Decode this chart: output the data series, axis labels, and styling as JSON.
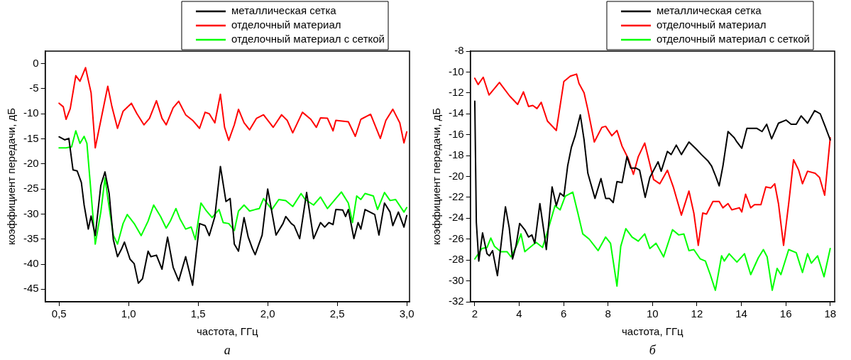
{
  "chart_data": [
    {
      "type": "line",
      "xlabel": "частота, ГГц",
      "ylabel": "коэффициент передачи, дБ",
      "annotations": [
        "а"
      ],
      "xlim": [
        0.4,
        3.02
      ],
      "ylim": [
        -47.5,
        2.5
      ],
      "xticks": [
        {
          "value": 0.5,
          "label": "0,5"
        },
        {
          "value": 1,
          "label": "1,0"
        },
        {
          "value": 1.5,
          "label": "1,5"
        },
        {
          "value": 2,
          "label": "2,0"
        },
        {
          "value": 2.5,
          "label": "2,5"
        },
        {
          "value": 3,
          "label": "3,0"
        }
      ],
      "yticks": [
        0,
        -5,
        -10,
        -15,
        -20,
        -25,
        -30,
        -35,
        -40,
        -45
      ],
      "grid": false,
      "legend": "top right",
      "marker": "none",
      "line_style": "solid",
      "series": [
        {
          "name": "металлическая сетка",
          "color": "#000000",
          "x": [
            0.5,
            0.54,
            0.57,
            0.6,
            0.63,
            0.66,
            0.68,
            0.71,
            0.73,
            0.76,
            0.8,
            0.83,
            0.86,
            0.89,
            0.92,
            0.95,
            0.97,
            1.01,
            1.04,
            1.07,
            1.1,
            1.14,
            1.16,
            1.2,
            1.24,
            1.28,
            1.32,
            1.36,
            1.41,
            1.46,
            1.51,
            1.55,
            1.58,
            1.62,
            1.66,
            1.7,
            1.73,
            1.76,
            1.79,
            1.83,
            1.86,
            1.89,
            1.91,
            1.96,
            2.0,
            2.03,
            2.06,
            2.11,
            2.13,
            2.17,
            2.19,
            2.23,
            2.28,
            2.33,
            2.38,
            2.41,
            2.44,
            2.47,
            2.49,
            2.54,
            2.56,
            2.58,
            2.62,
            2.65,
            2.67,
            2.7,
            2.77,
            2.8,
            2.84,
            2.88,
            2.9,
            2.94,
            2.98,
            3.0
          ],
          "values": [
            -14.6,
            -15.2,
            -14.9,
            -21.2,
            -21.4,
            -23.7,
            -28.2,
            -33.0,
            -30.4,
            -34.3,
            -24.3,
            -21.6,
            -25.9,
            -35.1,
            -38.5,
            -36.9,
            -35.6,
            -39.0,
            -39.9,
            -43.8,
            -42.9,
            -37.4,
            -38.5,
            -38.2,
            -41.0,
            -34.6,
            -40.6,
            -43.3,
            -38.5,
            -44.2,
            -31.9,
            -32.3,
            -34.3,
            -30.5,
            -20.5,
            -27.5,
            -26.9,
            -36.0,
            -37.4,
            -30.7,
            -34.6,
            -36.9,
            -38.1,
            -34.2,
            -25.0,
            -29.6,
            -34.2,
            -31.9,
            -30.5,
            -31.9,
            -32.3,
            -34.9,
            -25.7,
            -34.9,
            -31.7,
            -32.6,
            -31.7,
            -32.1,
            -29.1,
            -29.2,
            -30.5,
            -29.1,
            -34.9,
            -31.7,
            -33.0,
            -29.1,
            -30.1,
            -34.2,
            -27.8,
            -29.6,
            -32.3,
            -29.6,
            -32.6,
            -30.3
          ]
        },
        {
          "name": "отделочный материал",
          "color": "#ff0000",
          "x": [
            0.5,
            0.53,
            0.55,
            0.58,
            0.62,
            0.65,
            0.69,
            0.73,
            0.76,
            0.8,
            0.85,
            0.88,
            0.92,
            0.96,
            1.02,
            1.06,
            1.11,
            1.15,
            1.2,
            1.24,
            1.27,
            1.32,
            1.36,
            1.41,
            1.46,
            1.51,
            1.55,
            1.58,
            1.62,
            1.66,
            1.69,
            1.72,
            1.76,
            1.79,
            1.83,
            1.87,
            1.92,
            1.97,
            2.04,
            2.1,
            2.14,
            2.18,
            2.25,
            2.31,
            2.35,
            2.38,
            2.43,
            2.47,
            2.49,
            2.58,
            2.63,
            2.67,
            2.74,
            2.81,
            2.85,
            2.9,
            2.95,
            2.98,
            3.0
          ],
          "values": [
            -7.9,
            -8.6,
            -11.1,
            -9.0,
            -2.4,
            -3.5,
            -0.8,
            -5.8,
            -16.8,
            -11.3,
            -4.5,
            -8.6,
            -12.9,
            -9.5,
            -7.9,
            -10.0,
            -12.2,
            -10.9,
            -7.4,
            -10.9,
            -12.2,
            -8.8,
            -7.5,
            -10.2,
            -11.3,
            -12.9,
            -9.7,
            -10.0,
            -11.8,
            -6.1,
            -12.7,
            -15.3,
            -12.2,
            -9.1,
            -11.8,
            -13.2,
            -10.9,
            -10.2,
            -12.7,
            -10.2,
            -11.3,
            -13.8,
            -9.7,
            -11.1,
            -12.7,
            -10.8,
            -10.9,
            -13.4,
            -11.3,
            -11.6,
            -14.5,
            -11.1,
            -10.1,
            -14.9,
            -11.3,
            -9.1,
            -11.8,
            -15.8,
            -13.6
          ]
        },
        {
          "name": "отделочный материал с сеткой",
          "color": "#00ff00",
          "x": [
            0.5,
            0.55,
            0.59,
            0.62,
            0.65,
            0.68,
            0.7,
            0.73,
            0.76,
            0.8,
            0.83,
            0.86,
            0.89,
            0.92,
            0.96,
            0.99,
            1.04,
            1.09,
            1.14,
            1.18,
            1.23,
            1.27,
            1.3,
            1.34,
            1.37,
            1.41,
            1.45,
            1.48,
            1.52,
            1.56,
            1.6,
            1.65,
            1.68,
            1.72,
            1.76,
            1.79,
            1.83,
            1.87,
            1.91,
            1.94,
            1.97,
            2.03,
            2.08,
            2.13,
            2.18,
            2.24,
            2.27,
            2.33,
            2.38,
            2.43,
            2.49,
            2.53,
            2.58,
            2.61,
            2.64,
            2.67,
            2.7,
            2.76,
            2.79,
            2.84,
            2.88,
            2.92,
            2.98,
            3.0
          ],
          "values": [
            -16.8,
            -16.8,
            -16.6,
            -13.4,
            -15.9,
            -14.5,
            -15.9,
            -25.9,
            -36.0,
            -29.6,
            -22.8,
            -28.7,
            -34.2,
            -36.0,
            -31.9,
            -30.1,
            -31.9,
            -34.3,
            -31.4,
            -28.2,
            -30.5,
            -32.8,
            -31.4,
            -28.9,
            -31.0,
            -33.0,
            -32.6,
            -35.1,
            -27.8,
            -29.4,
            -30.7,
            -29.1,
            -31.7,
            -31.9,
            -33.3,
            -29.4,
            -28.2,
            -29.4,
            -29.1,
            -28.9,
            -26.9,
            -29.1,
            -27.1,
            -27.3,
            -28.5,
            -25.9,
            -27.1,
            -28.2,
            -26.6,
            -28.9,
            -26.9,
            -25.6,
            -27.8,
            -31.7,
            -26.4,
            -27.1,
            -25.9,
            -26.4,
            -29.1,
            -25.7,
            -27.3,
            -27.1,
            -29.6,
            -28.7
          ]
        }
      ]
    },
    {
      "type": "line",
      "xlabel": "частота, ГГц",
      "ylabel": "коэффициент передачи, дБ",
      "annotations": [
        "б"
      ],
      "xlim": [
        1.8,
        18.2
      ],
      "ylim": [
        -32,
        -8
      ],
      "xticks": [
        2,
        4,
        6,
        8,
        10,
        12,
        14,
        16,
        18
      ],
      "yticks": [
        -8,
        -10,
        -12,
        -14,
        -16,
        -18,
        -20,
        -22,
        -24,
        -26,
        -28,
        -30,
        -32
      ],
      "grid": false,
      "legend": "top right",
      "marker": "none",
      "line_style": "solid",
      "series": [
        {
          "name": "металлическая сетка",
          "color": "#000000",
          "x": [
            2.0,
            2.07,
            2.18,
            2.35,
            2.55,
            2.66,
            2.8,
            3.02,
            3.2,
            3.38,
            3.55,
            3.7,
            3.85,
            4.02,
            4.25,
            4.42,
            4.57,
            4.7,
            4.93,
            5.1,
            5.22,
            5.48,
            5.67,
            5.84,
            6.01,
            6.18,
            6.35,
            6.52,
            6.75,
            6.92,
            7.09,
            7.41,
            7.68,
            7.89,
            8.06,
            8.23,
            8.4,
            8.63,
            8.85,
            9.02,
            9.25,
            9.42,
            9.67,
            9.88,
            10.25,
            10.39,
            10.67,
            10.84,
            11.07,
            11.3,
            11.64,
            11.98,
            12.2,
            12.49,
            12.66,
            12.83,
            13.0,
            13.17,
            13.4,
            13.68,
            13.8,
            14.02,
            14.25,
            14.48,
            14.7,
            14.93,
            15.14,
            15.36,
            15.67,
            16.01,
            16.24,
            16.47,
            16.69,
            16.98,
            17.3,
            17.55,
            17.77,
            18.0
          ],
          "values": [
            -12.8,
            -24.4,
            -28.1,
            -25.4,
            -27.4,
            -27.6,
            -27.1,
            -29.5,
            -26.2,
            -22.9,
            -24.9,
            -27.9,
            -26.7,
            -24.5,
            -25.1,
            -25.8,
            -25.6,
            -26.4,
            -22.6,
            -25.1,
            -27.0,
            -21.0,
            -22.8,
            -21.6,
            -21.9,
            -19.0,
            -17.2,
            -16.1,
            -14.1,
            -16.5,
            -19.7,
            -22.1,
            -20.2,
            -22.1,
            -22.1,
            -22.5,
            -20.5,
            -20.6,
            -18.1,
            -19.2,
            -19.2,
            -19.4,
            -22.0,
            -20.1,
            -18.6,
            -19.5,
            -17.6,
            -17.9,
            -17.0,
            -17.9,
            -16.7,
            -17.4,
            -17.9,
            -18.5,
            -19.0,
            -19.9,
            -20.9,
            -19.0,
            -15.7,
            -16.3,
            -16.7,
            -17.3,
            -15.4,
            -15.4,
            -15.4,
            -15.7,
            -15.0,
            -16.4,
            -14.9,
            -14.6,
            -15.0,
            -15.0,
            -14.2,
            -14.9,
            -13.7,
            -14.0,
            -15.2,
            -16.5
          ]
        },
        {
          "name": "отделочный материал",
          "color": "#ff0000",
          "x": [
            2.0,
            2.15,
            2.38,
            2.64,
            3.11,
            3.57,
            3.93,
            4.19,
            4.42,
            4.61,
            4.8,
            4.99,
            5.27,
            5.67,
            6.01,
            6.3,
            6.58,
            6.69,
            6.92,
            7.09,
            7.38,
            7.72,
            7.89,
            8.17,
            8.4,
            8.63,
            8.91,
            9.14,
            9.36,
            9.65,
            10.05,
            10.33,
            10.67,
            10.95,
            11.3,
            11.64,
            11.86,
            12.06,
            12.26,
            12.43,
            12.72,
            13.0,
            13.17,
            13.4,
            13.57,
            13.91,
            14.02,
            14.19,
            14.42,
            14.59,
            14.88,
            15.1,
            15.33,
            15.5,
            15.67,
            15.9,
            16.13,
            16.35,
            16.58,
            16.75,
            16.98,
            17.32,
            17.52,
            17.75,
            18.0
          ],
          "values": [
            -10.6,
            -11.2,
            -10.5,
            -12.2,
            -11.0,
            -12.3,
            -13.1,
            -11.9,
            -13.3,
            -13.2,
            -13.5,
            -12.9,
            -14.7,
            -15.6,
            -10.9,
            -10.4,
            -10.2,
            -11.1,
            -12.0,
            -13.6,
            -16.7,
            -15.3,
            -15.2,
            -16.1,
            -15.6,
            -17.1,
            -18.3,
            -19.8,
            -18.1,
            -16.8,
            -20.3,
            -20.7,
            -19.4,
            -21.1,
            -23.7,
            -21.4,
            -23.5,
            -26.6,
            -23.5,
            -23.6,
            -22.4,
            -22.4,
            -23.0,
            -22.6,
            -23.2,
            -23.0,
            -23.4,
            -21.7,
            -23.0,
            -22.7,
            -22.7,
            -21.0,
            -21.1,
            -20.7,
            -22.6,
            -26.6,
            -22.6,
            -18.4,
            -19.4,
            -20.7,
            -19.5,
            -19.7,
            -20.1,
            -21.8,
            -16.3
          ]
        },
        {
          "name": "отделочный материал с сеткой",
          "color": "#00ff00",
          "x": [
            2.0,
            2.32,
            2.55,
            2.72,
            2.89,
            3.17,
            3.45,
            3.63,
            3.91,
            4.08,
            4.25,
            4.48,
            4.76,
            5.05,
            5.27,
            5.61,
            5.84,
            6.07,
            6.41,
            6.64,
            6.86,
            7.15,
            7.55,
            7.89,
            8.11,
            8.4,
            8.57,
            8.8,
            9.08,
            9.36,
            9.65,
            9.88,
            10.16,
            10.5,
            10.9,
            11.18,
            11.41,
            11.64,
            11.86,
            12.15,
            12.38,
            12.6,
            12.83,
            13.11,
            13.23,
            13.45,
            13.8,
            14.14,
            14.42,
            14.76,
            14.99,
            15.16,
            15.39,
            15.61,
            15.78,
            16.13,
            16.47,
            16.75,
            16.98,
            17.15,
            17.43,
            17.72,
            18.0
          ],
          "values": [
            -27.9,
            -26.9,
            -26.8,
            -25.9,
            -26.7,
            -27.2,
            -27.2,
            -27.7,
            -26.5,
            -25.5,
            -27.2,
            -26.8,
            -26.3,
            -26.8,
            -25.3,
            -22.8,
            -23.2,
            -21.9,
            -21.5,
            -23.5,
            -25.5,
            -26.0,
            -27.1,
            -25.8,
            -26.4,
            -30.5,
            -26.7,
            -25.0,
            -25.8,
            -26.2,
            -25.5,
            -26.9,
            -26.4,
            -27.7,
            -25.1,
            -25.6,
            -25.5,
            -27.1,
            -27.0,
            -27.9,
            -28.1,
            -29.4,
            -30.9,
            -27.6,
            -28.1,
            -27.4,
            -28.2,
            -27.4,
            -29.4,
            -27.8,
            -27.0,
            -27.7,
            -30.9,
            -28.8,
            -29.4,
            -27.0,
            -27.3,
            -29.2,
            -27.4,
            -28.3,
            -27.6,
            -29.6,
            -26.9
          ]
        }
      ]
    }
  ]
}
